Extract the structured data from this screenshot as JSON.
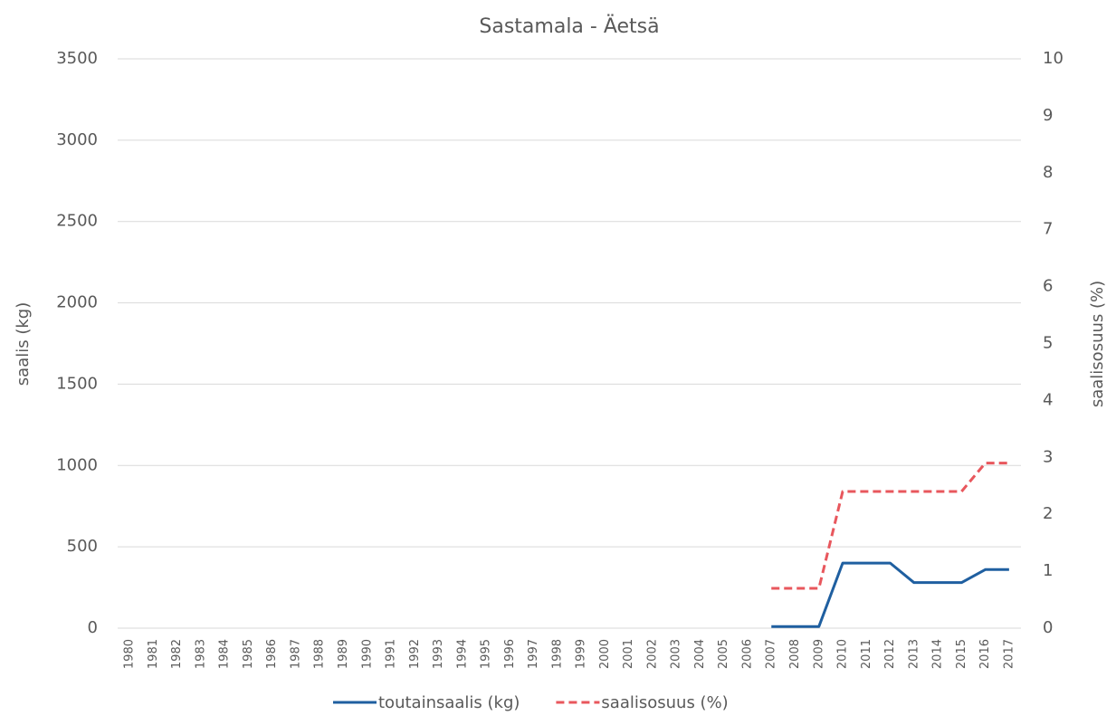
{
  "chart_data": {
    "type": "line",
    "title": "Sastamala - Äetsä",
    "y_label": "saalis (kg)",
    "y2_label": "saalisosuus (%)",
    "categories": [
      "1980",
      "1981",
      "1982",
      "1983",
      "1984",
      "1985",
      "1986",
      "1987",
      "1988",
      "1989",
      "1990",
      "1991",
      "1992",
      "1993",
      "1994",
      "1995",
      "1996",
      "1997",
      "1998",
      "1999",
      "2000",
      "2001",
      "2002",
      "2003",
      "2004",
      "2005",
      "2006",
      "2007",
      "2008",
      "2009",
      "2010",
      "2011",
      "2012",
      "2013",
      "2014",
      "2015",
      "2016",
      "2017"
    ],
    "series": [
      {
        "name": "toutainsaalis (kg)",
        "color": "#1f5fa0",
        "dash": false,
        "values": [
          null,
          null,
          null,
          null,
          null,
          null,
          null,
          null,
          null,
          null,
          null,
          null,
          null,
          null,
          null,
          null,
          null,
          null,
          null,
          null,
          null,
          null,
          null,
          null,
          null,
          null,
          null,
          10,
          10,
          10,
          400,
          400,
          400,
          280,
          280,
          280,
          360,
          360
        ]
      },
      {
        "name": "saalisosuus (%)",
        "color": "#e8575d",
        "dash": true,
        "axis": "y2",
        "values": [
          null,
          null,
          null,
          null,
          null,
          null,
          null,
          null,
          null,
          null,
          null,
          null,
          null,
          null,
          null,
          null,
          null,
          null,
          null,
          null,
          null,
          null,
          null,
          null,
          null,
          null,
          null,
          0.7,
          0.7,
          0.7,
          2.4,
          2.4,
          2.4,
          2.4,
          2.4,
          2.4,
          2.9,
          2.9
        ]
      }
    ],
    "ylim": [
      0,
      3500
    ],
    "yticks": [
      0,
      500,
      1000,
      1500,
      2000,
      2500,
      3000,
      3500
    ],
    "y2lim": [
      0,
      10
    ],
    "y2ticks": [
      0,
      1,
      2,
      3,
      4,
      5,
      6,
      7,
      8,
      9,
      10
    ],
    "grid": true,
    "legend": "bottom"
  }
}
